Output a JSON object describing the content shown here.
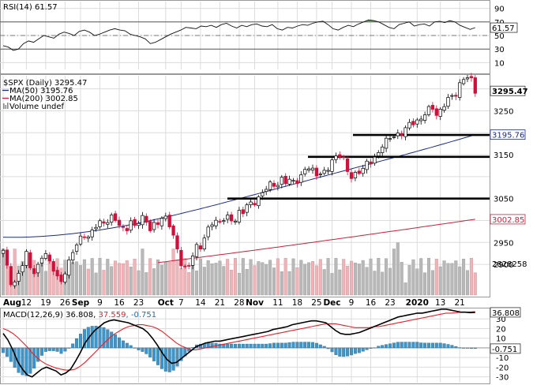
{
  "chart_data": {
    "type": "stock_chart",
    "symbol_label": "$SPX (Daily) 3295.47",
    "rsi": {
      "label": "RSI(14) 61.57",
      "value_tag": "61.57",
      "ticks": [
        "90",
        "70",
        "50",
        "30",
        "10"
      ],
      "ylim": [
        0,
        100
      ],
      "levels": [
        70,
        30
      ],
      "midline": 50,
      "values": [
        35,
        33,
        28,
        30,
        38,
        42,
        40,
        45,
        50,
        48,
        46,
        52,
        55,
        53,
        50,
        56,
        58,
        55,
        50,
        52,
        55,
        58,
        60,
        58,
        57,
        52,
        50,
        48,
        45,
        38,
        40,
        44,
        48,
        52,
        55,
        58,
        62,
        61,
        60,
        64,
        63,
        65,
        62,
        66,
        68,
        64,
        61,
        65,
        63,
        66,
        67,
        64,
        63,
        66,
        60,
        58,
        62,
        61,
        64,
        66,
        65,
        68,
        70,
        71,
        66,
        60,
        58,
        62,
        65,
        63,
        67,
        70,
        73,
        72,
        70,
        66,
        62,
        60,
        66,
        68,
        70,
        64,
        66,
        67,
        64,
        70,
        71,
        69,
        72,
        70,
        65,
        62,
        59,
        61.57
      ]
    },
    "price": {
      "ylim": [
        2830,
        3330
      ],
      "ticks": [
        "3250",
        "3150",
        "3050",
        "2950",
        "2900"
      ],
      "tick_values": [
        3250,
        3150,
        3050,
        2950,
        2900
      ],
      "tags": [
        {
          "text": "3295.47",
          "value": 3295.47,
          "style": "price"
        },
        {
          "text": "3195.76",
          "value": 3195.76,
          "style": "ma50"
        },
        {
          "text": "3002.85",
          "value": 3002.85,
          "style": "ma200"
        }
      ],
      "legend": [
        {
          "text": "MA(50) 3195.76",
          "color": "#1a2a8c"
        },
        {
          "text": "MA(200) 3002.85",
          "color": "#cc1f3a"
        },
        {
          "text": "Volume undef",
          "color": "#7f7f7f"
        }
      ],
      "closes": [
        2932,
        2885,
        2845,
        2870,
        2900,
        2926,
        2883,
        2880,
        2918,
        2924,
        2900,
        2885,
        2852,
        2880,
        2906,
        2938,
        2952,
        2970,
        2960,
        2978,
        2996,
        2993,
        2998,
        3007,
        3003,
        2980,
        2978,
        2997,
        2985,
        3005,
        3007,
        2978,
        2990,
        2997,
        3010,
        3000,
        2965,
        2930,
        2890,
        2888,
        2918,
        2940,
        2940,
        2970,
        2996,
        2996,
        2997,
        3007,
        3006,
        2996,
        3018,
        3022,
        3040,
        3039,
        3047,
        3066,
        3078,
        3085,
        3077,
        3094,
        3089,
        3092,
        3087,
        3096,
        3120,
        3121,
        3108,
        3104,
        3110,
        3122,
        3140,
        3153,
        3141,
        3113,
        3093,
        3112,
        3113,
        3132,
        3135,
        3142,
        3168,
        3180,
        3191,
        3192,
        3196,
        3205,
        3221,
        3224,
        3224,
        3240,
        3253,
        3258,
        3235,
        3258,
        3275,
        3283,
        3289,
        3316,
        3330,
        3325,
        3295
      ],
      "support_lines": [
        3195,
        3145,
        3050
      ],
      "ma50_start": 2962,
      "ma50_end": 3195.76,
      "ma200_start": 2866,
      "ma200_end": 3002.85
    },
    "volume": {
      "ylim": [
        0,
        5000
      ],
      "ticks": [
        "2828258"
      ],
      "tag_value": 2828258
    },
    "macd": {
      "label": "MACD(12,26,9) 36.808, 37.559, -0.751",
      "label_parts": {
        "name": "MACD(12,26,9)",
        "macd": "36.808",
        "signal": "37.559",
        "hist": "-0.751"
      },
      "ticks": [
        "30",
        "20",
        "10",
        "0",
        "-10",
        "-20",
        "-30"
      ],
      "tick_values": [
        30,
        20,
        10,
        0,
        -10,
        -20,
        -30
      ],
      "ylim": [
        -36,
        40
      ],
      "tags": [
        {
          "text": "36.808",
          "value": 36.808
        },
        {
          "text": "-0.751",
          "value": -0.751
        }
      ],
      "macd_values": [
        15,
        8,
        -2,
        -14,
        -22,
        -28,
        -30,
        -26,
        -22,
        -20,
        -22,
        -24,
        -28,
        -26,
        -22,
        -14,
        -5,
        5,
        12,
        18,
        22,
        26,
        28,
        29,
        28,
        27,
        26,
        24,
        22,
        20,
        16,
        10,
        3,
        -5,
        -12,
        -16,
        -15,
        -11,
        -7,
        -3,
        1,
        3,
        5,
        6,
        7,
        7,
        8,
        9,
        10,
        11,
        12,
        13,
        14,
        15,
        16,
        17,
        19,
        20,
        21,
        22,
        24,
        25,
        26,
        27,
        28,
        28,
        27,
        26,
        22,
        18,
        15,
        14,
        14,
        15,
        16,
        18,
        20,
        22,
        24,
        26,
        28,
        30,
        32,
        33,
        34,
        35,
        36,
        36,
        37,
        38,
        39,
        40,
        40,
        39,
        38,
        37,
        37,
        36.5,
        36.8
      ],
      "signal_values": [
        20,
        18,
        15,
        11,
        6,
        1,
        -5,
        -10,
        -14,
        -17,
        -19,
        -21,
        -22,
        -23,
        -23,
        -22,
        -19,
        -15,
        -10,
        -5,
        0,
        5,
        10,
        14,
        17,
        20,
        22,
        23,
        24,
        24,
        23,
        22,
        20,
        17,
        13,
        9,
        5,
        2,
        0,
        -2,
        -2,
        -1,
        0,
        1,
        2,
        3,
        4,
        5,
        6,
        7,
        8,
        9,
        10,
        11,
        12,
        13,
        14,
        15,
        16,
        17,
        18,
        19,
        20,
        21,
        22,
        23,
        24,
        25,
        25,
        25,
        24,
        23,
        22,
        21,
        21,
        21,
        21,
        22,
        22,
        23,
        24,
        25,
        26,
        27,
        28,
        29,
        30,
        31,
        32,
        33,
        34,
        35,
        36,
        36,
        36.5,
        37,
        37,
        37.2,
        37.559
      ],
      "hist_last": -0.751
    },
    "x_labels": [
      {
        "text": "Aug",
        "bold": true,
        "index": 0
      },
      {
        "text": "12",
        "index": 6
      },
      {
        "text": "19",
        "index": 11
      },
      {
        "text": "26",
        "index": 16
      },
      {
        "text": "Sep",
        "bold": true,
        "index": 20
      },
      {
        "text": "9",
        "index": 25
      },
      {
        "text": "16",
        "index": 30
      },
      {
        "text": "23",
        "index": 35
      },
      {
        "text": "Oct",
        "bold": true,
        "index": 42
      },
      {
        "text": "7",
        "index": 46
      },
      {
        "text": "14",
        "index": 51
      },
      {
        "text": "21",
        "index": 56
      },
      {
        "text": "28",
        "index": 61
      },
      {
        "text": "Nov",
        "bold": true,
        "index": 65
      },
      {
        "text": "11",
        "index": 71
      },
      {
        "text": "18",
        "index": 76
      },
      {
        "text": "25",
        "index": 81
      },
      {
        "text": "Dec",
        "bold": true,
        "index": 85
      },
      {
        "text": "9",
        "index": 90
      },
      {
        "text": "16",
        "index": 95
      },
      {
        "text": "23",
        "index": 100
      },
      {
        "text": "2020",
        "bold": true,
        "index": 107
      },
      {
        "text": "13",
        "index": 113
      },
      {
        "text": "21",
        "index": 118
      }
    ],
    "colors": {
      "up": "#ffffff",
      "down": "#d0103a",
      "candle_outline": "#000000",
      "ma50": "#1a2a8c",
      "ma200": "#cc1f3a",
      "vol_up": "#b8b8b8",
      "vol_down": "#eeb4b8",
      "macd": "#000000",
      "signal": "#e8202a",
      "hist": "#3f95c8",
      "rsi_fill": "#6c9c6a"
    },
    "grid": true
  }
}
